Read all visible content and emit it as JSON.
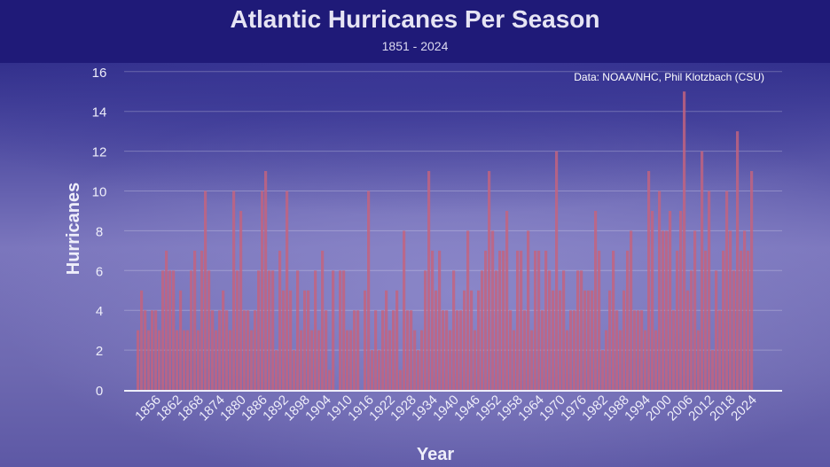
{
  "header": {
    "title": "Atlantic Hurricanes Per Season",
    "subtitle": "1851 - 2024"
  },
  "credit": "Data: NOAA/NHC, Phil Klotzbach (CSU)",
  "chart_data": {
    "type": "bar",
    "title": "Atlantic Hurricanes Per Season",
    "subtitle": "1851 - 2024",
    "xlabel": "Year",
    "ylabel": "Hurricanes",
    "ylim": [
      0,
      16
    ],
    "y_ticks": [
      0,
      2,
      4,
      6,
      8,
      10,
      12,
      14,
      16
    ],
    "x_tick_labels": [
      "1856",
      "1862",
      "1868",
      "1874",
      "1880",
      "1886",
      "1892",
      "1898",
      "1904",
      "1910",
      "1916",
      "1922",
      "1928",
      "1934",
      "1940",
      "1946",
      "1952",
      "1958",
      "1964",
      "1970",
      "1976",
      "1982",
      "1988",
      "1994",
      "2000",
      "2006",
      "2012",
      "2018",
      "2024"
    ],
    "grid": true,
    "bar_color": "#c4637e",
    "x_start": 1851,
    "values": [
      3,
      5,
      4,
      3,
      4,
      4,
      3,
      6,
      7,
      6,
      6,
      3,
      5,
      3,
      3,
      6,
      7,
      3,
      7,
      10,
      6,
      4,
      3,
      4,
      5,
      4,
      3,
      10,
      6,
      9,
      4,
      4,
      3,
      4,
      6,
      10,
      11,
      6,
      6,
      2,
      7,
      5,
      10,
      5,
      2,
      6,
      3,
      5,
      5,
      3,
      6,
      3,
      7,
      4,
      1,
      6,
      0,
      6,
      6,
      3,
      3,
      4,
      4,
      0,
      5,
      10,
      2,
      4,
      2,
      4,
      5,
      3,
      4,
      5,
      1,
      8,
      4,
      4,
      3,
      2,
      3,
      6,
      11,
      7,
      5,
      7,
      4,
      4,
      3,
      6,
      4,
      4,
      5,
      8,
      5,
      3,
      5,
      6,
      7,
      11,
      8,
      6,
      7,
      7,
      9,
      4,
      3,
      7,
      7,
      4,
      8,
      3,
      7,
      7,
      4,
      7,
      6,
      5,
      12,
      5,
      6,
      3,
      4,
      4,
      6,
      6,
      5,
      5,
      5,
      9,
      7,
      2,
      3,
      5,
      7,
      4,
      3,
      5,
      7,
      8,
      4,
      4,
      4,
      3,
      11,
      9,
      3,
      10,
      8,
      8,
      9,
      4,
      7,
      9,
      15,
      5,
      6,
      8,
      3,
      12,
      7,
      10,
      2,
      6,
      4,
      7,
      10,
      8,
      6,
      13,
      7,
      8,
      7,
      11
    ]
  }
}
